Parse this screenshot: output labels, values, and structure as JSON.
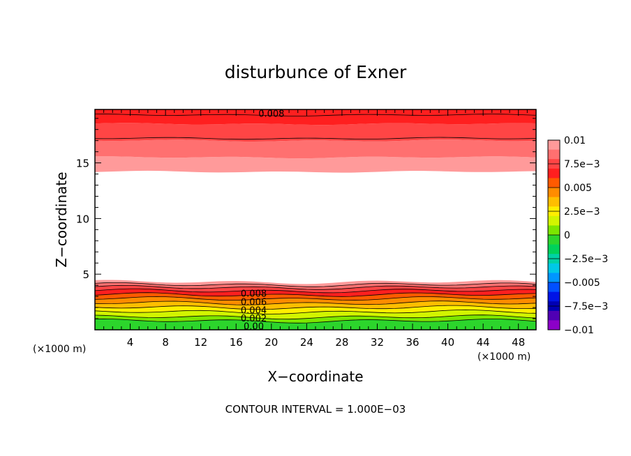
{
  "chart_data": {
    "type": "heatmap",
    "title": "disturbunce of Exner",
    "xlabel": "X−coordinate",
    "ylabel": "Z−coordinate",
    "x_unit_left": "(×1000 m)",
    "x_unit_right": "(×1000 m)",
    "xlim": [
      0,
      50
    ],
    "ylim": [
      0,
      19.8
    ],
    "x_ticks": [
      4,
      8,
      12,
      16,
      20,
      24,
      28,
      32,
      36,
      40,
      44,
      48
    ],
    "x_tick_labels": [
      "4",
      "8",
      "12",
      "16",
      "20",
      "24",
      "28",
      "32",
      "36",
      "40",
      "44",
      "48"
    ],
    "y_ticks": [
      5,
      10,
      15
    ],
    "y_tick_labels": [
      "5",
      "10",
      "15"
    ],
    "footer_note": "CONTOUR INTERVAL = 1.000E−03",
    "colorbar": {
      "range": [
        -0.01,
        0.01
      ],
      "tick_values": [
        0.01,
        0.0075,
        0.005,
        0.0025,
        0,
        -0.0025,
        -0.005,
        -0.0075,
        -0.01
      ],
      "tick_labels": [
        "0.01",
        "7.5e−3",
        "0.005",
        "2.5e−3",
        "0",
        "−2.5e−3",
        "−0.005",
        "−7.5e−3",
        "−0.01"
      ],
      "colors_top_to_bottom": [
        "#ff9a9a",
        "#ff7070",
        "#ff4545",
        "#ff1f1f",
        "#ff5a00",
        "#ff8c00",
        "#ffbe00",
        "#ffee00",
        "#d2f500",
        "#7ce600",
        "#2cd52c",
        "#00d25a",
        "#00d2a5",
        "#00c8e6",
        "#0096ff",
        "#0050ff",
        "#0014e6",
        "#0000b4",
        "#5000b4",
        "#8c00c8"
      ]
    },
    "bands": [
      {
        "z_bottom": 0.0,
        "z_top": 0.8,
        "value": -0.0005,
        "color": "#2cd52c"
      },
      {
        "z_bottom": 0.8,
        "z_top": 1.15,
        "value": 0.0005,
        "color": "#7ce600"
      },
      {
        "z_bottom": 1.15,
        "z_top": 1.6,
        "value": 0.0015,
        "color": "#d2f500"
      },
      {
        "z_bottom": 1.6,
        "z_top": 2.0,
        "value": 0.0025,
        "color": "#ffee00"
      },
      {
        "z_bottom": 2.0,
        "z_top": 2.4,
        "value": 0.0035,
        "color": "#ffbe00"
      },
      {
        "z_bottom": 2.4,
        "z_top": 2.8,
        "value": 0.0045,
        "color": "#ff8c00"
      },
      {
        "z_bottom": 2.8,
        "z_top": 3.15,
        "value": 0.0055,
        "color": "#ff5a00"
      },
      {
        "z_bottom": 3.15,
        "z_top": 3.5,
        "value": 0.0065,
        "color": "#ff1f1f"
      },
      {
        "z_bottom": 3.5,
        "z_top": 3.8,
        "value": 0.0075,
        "color": "#ff4545"
      },
      {
        "z_bottom": 3.8,
        "z_top": 4.05,
        "value": 0.0085,
        "color": "#ff7070"
      },
      {
        "z_bottom": 4.05,
        "z_top": 4.3,
        "value": 0.0095,
        "color": "#ff9a9a"
      },
      {
        "z_bottom": 14.2,
        "z_top": 15.5,
        "value": 0.0095,
        "color": "#ff9a9a"
      },
      {
        "z_bottom": 15.5,
        "z_top": 17.0,
        "value": 0.0085,
        "color": "#ff7070"
      },
      {
        "z_bottom": 17.0,
        "z_top": 18.5,
        "value": 0.0075,
        "color": "#ff4545"
      },
      {
        "z_bottom": 18.5,
        "z_top": 19.8,
        "value": 0.0065,
        "color": "#ff1f1f"
      }
    ],
    "contour_lines_z": [
      0.8,
      1.15,
      1.6,
      2.0,
      2.4,
      2.8,
      3.15,
      3.5,
      3.8,
      4.05,
      17.2,
      19.3
    ],
    "contour_labels": [
      {
        "text": "0.008",
        "x": 20.0,
        "z": 19.45
      },
      {
        "text": "0.008",
        "x": 18.0,
        "z": 3.3
      },
      {
        "text": "0.006",
        "x": 18.0,
        "z": 2.55
      },
      {
        "text": "0.004",
        "x": 18.0,
        "z": 1.8
      },
      {
        "text": "0.002",
        "x": 18.0,
        "z": 1.05
      },
      {
        "text": "0.00",
        "x": 18.0,
        "z": 0.35
      }
    ]
  }
}
